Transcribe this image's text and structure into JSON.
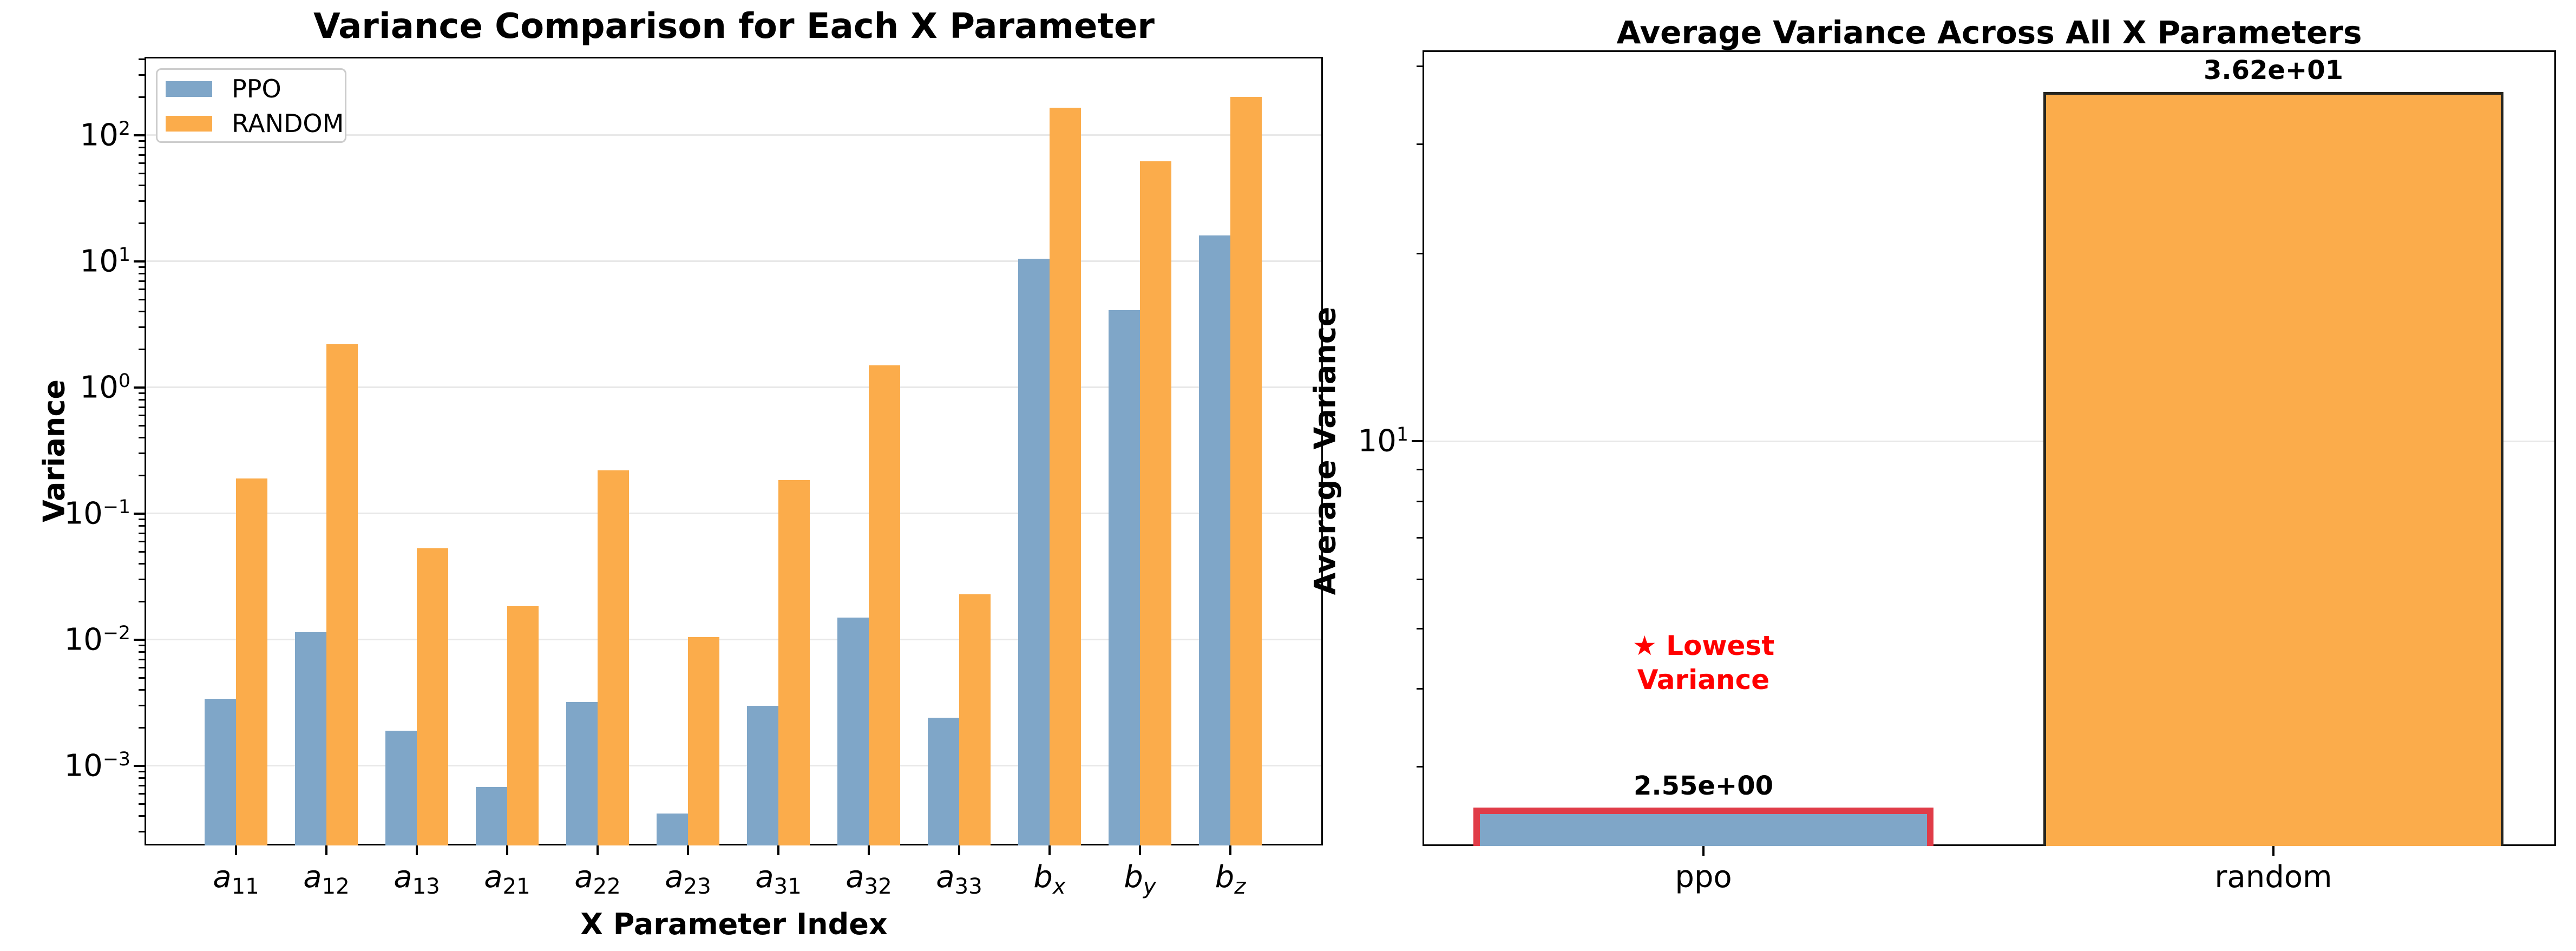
{
  "page": {
    "background": "#ffffff"
  },
  "colors": {
    "ppo_bar": "#7FA6C8",
    "random_bar": "#FBAC4B",
    "ppo_edge": "#E03C48",
    "random_edge": "#26251F",
    "grid": "#e8e8e8",
    "axis": "#000000",
    "annotation_red": "#FF0000"
  },
  "left_chart": {
    "title": "Variance Comparison for Each X Parameter",
    "ylabel": "Variance",
    "xlabel": "X Parameter Index",
    "legend": [
      {
        "label": "PPO",
        "color": "#7FA6C8"
      },
      {
        "label": "RANDOM",
        "color": "#FBAC4B"
      }
    ],
    "y_tick_exponents": [
      2,
      1,
      0,
      -1,
      -2,
      -3
    ],
    "categories": [
      {
        "base": "a",
        "sub": "11"
      },
      {
        "base": "a",
        "sub": "12"
      },
      {
        "base": "a",
        "sub": "13"
      },
      {
        "base": "a",
        "sub": "21"
      },
      {
        "base": "a",
        "sub": "22"
      },
      {
        "base": "a",
        "sub": "23"
      },
      {
        "base": "a",
        "sub": "31"
      },
      {
        "base": "a",
        "sub": "32"
      },
      {
        "base": "a",
        "sub": "33"
      },
      {
        "base": "b",
        "sub": "x"
      },
      {
        "base": "b",
        "sub": "y"
      },
      {
        "base": "b",
        "sub": "z"
      }
    ]
  },
  "right_chart": {
    "title": "Average Variance Across All X Parameters",
    "ylabel": "Average Variance",
    "y_tick_exponents": [
      1
    ],
    "categories": [
      "ppo",
      "random"
    ],
    "bar_labels": [
      "2.55e+00",
      "3.62e+01"
    ],
    "annotation": {
      "line1": "★ Lowest",
      "line2": "Variance",
      "color": "#FF0000"
    }
  },
  "chart_data": [
    {
      "type": "bar",
      "title": "Variance Comparison for Each X Parameter",
      "xlabel": "X Parameter Index",
      "ylabel": "Variance",
      "yscale": "log",
      "ylim": [
        0.00023,
        420
      ],
      "grid": "horizontal-major",
      "legend_position": "upper-left",
      "categories": [
        "a11",
        "a12",
        "a13",
        "a21",
        "a22",
        "a23",
        "a31",
        "a32",
        "a33",
        "bx",
        "by",
        "bz"
      ],
      "series": [
        {
          "name": "PPO",
          "color": "#7FA6C8",
          "values": [
            0.0034,
            0.0115,
            0.0019,
            0.00068,
            0.0032,
            0.00042,
            0.003,
            0.015,
            0.0024,
            10.5,
            4.1,
            16.0
          ]
        },
        {
          "name": "RANDOM",
          "color": "#FBAC4B",
          "values": [
            0.19,
            2.2,
            0.053,
            0.0185,
            0.22,
            0.0105,
            0.185,
            1.5,
            0.023,
            166,
            62,
            202
          ]
        }
      ]
    },
    {
      "type": "bar",
      "title": "Average Variance Across All X Parameters",
      "ylabel": "Average Variance",
      "yscale": "log",
      "ylim": [
        2.24,
        42.4
      ],
      "grid": "horizontal-major",
      "categories": [
        "ppo",
        "random"
      ],
      "values": [
        2.55,
        36.2
      ],
      "bar_labels": [
        "2.55e+00",
        "3.62e+01"
      ],
      "bar_colors": [
        "#7FA6C8",
        "#FBAC4B"
      ],
      "bar_edge_colors": [
        "#E03C48",
        "#26251F"
      ],
      "annotation": {
        "text": "★ Lowest Variance",
        "color": "#FF0000",
        "target": "ppo"
      }
    }
  ]
}
